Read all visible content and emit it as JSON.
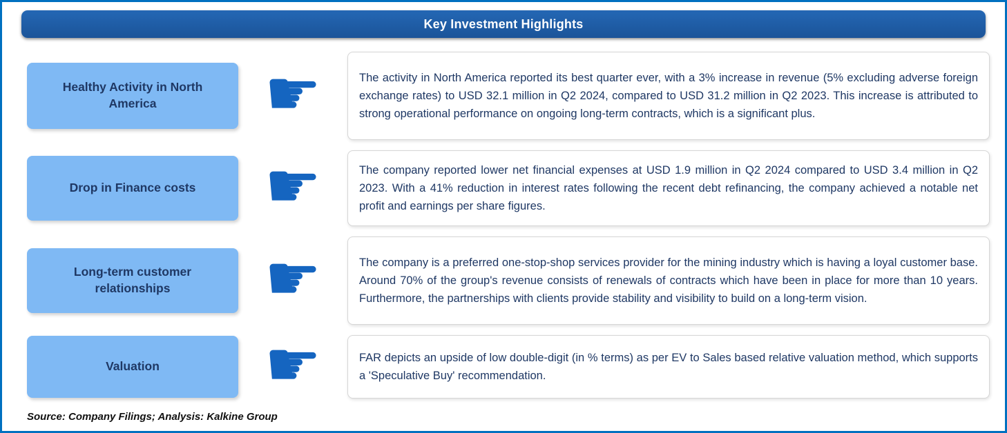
{
  "page": {
    "title": "Key Investment Highlights",
    "source_note": "Source: Company Filings; Analysis: Kalkine Group"
  },
  "icons": {
    "pointing_hand": "☛"
  },
  "colors": {
    "outer_border": "#0070C0",
    "header_bg": "#1E5CA8",
    "label_bg": "#7FB9F4",
    "label_text": "#1F3864",
    "hand": "#1565C0",
    "body_text": "#1F3864"
  },
  "rows": [
    {
      "label": "Healthy Activity in North America",
      "text": "The activity in North America reported its best quarter ever, with a 3% increase in revenue (5% excluding adverse foreign exchange rates) to USD 32.1 million in Q2 2024, compared to USD 31.2 million in Q2 2023. This increase is attributed to strong operational performance on ongoing long-term contracts, which is a significant plus."
    },
    {
      "label": "Drop in Finance costs",
      "text": "The company reported lower net financial expenses at USD 1.9 million in Q2 2024 compared to USD 3.4 million in Q2 2023. With a 41% reduction in interest rates following the recent debt refinancing, the company achieved a notable net profit and earnings per share figures."
    },
    {
      "label": "Long-term customer relationships",
      "text": "The company is a preferred one-stop-shop services provider for the mining industry which is having a loyal customer base. Around 70% of the group's revenue consists of renewals of contracts which have been in place for more than 10 years. Furthermore, the partnerships with clients provide stability and visibility to build on a long-term vision."
    },
    {
      "label": "Valuation",
      "text": "FAR depicts an upside of low double-digit (in % terms) as per EV to Sales based relative valuation method, which supports a 'Speculative Buy' recommendation."
    }
  ]
}
